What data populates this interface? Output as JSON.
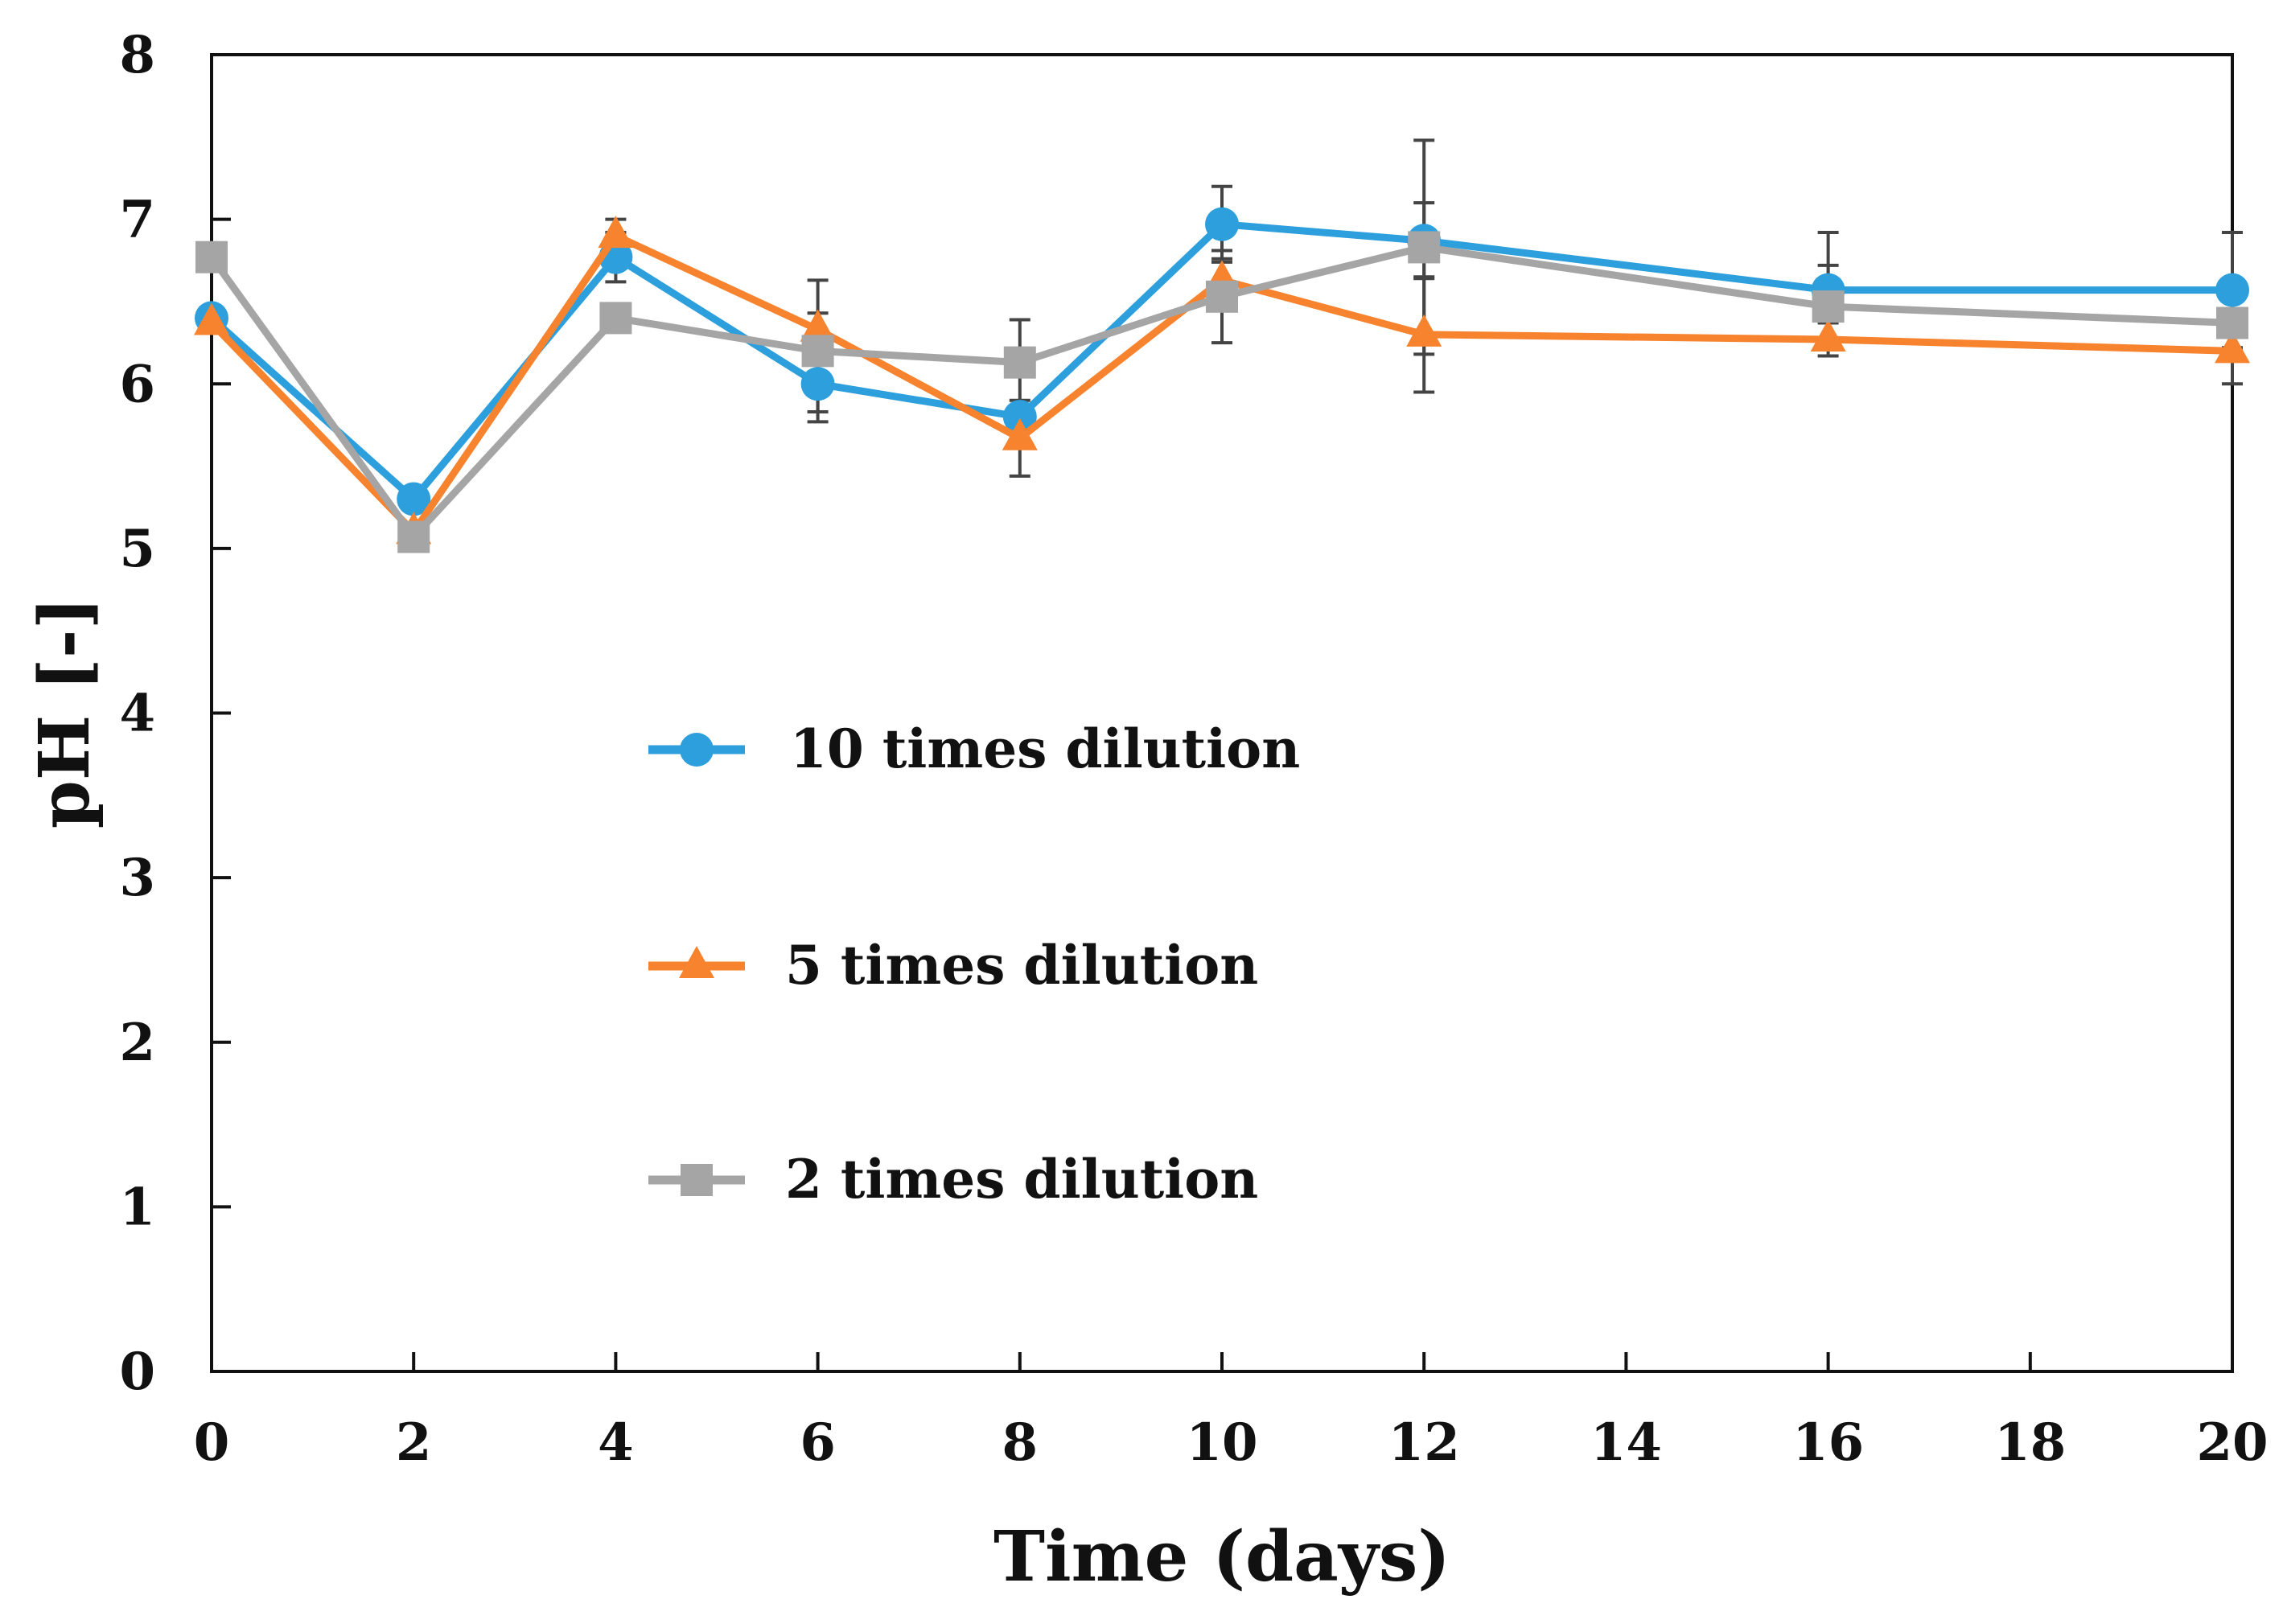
{
  "chart_data": {
    "type": "line",
    "title": "",
    "xlabel": "Time (days)",
    "ylabel": "pH [-]",
    "xlim": [
      0,
      20
    ],
    "ylim": [
      0,
      8
    ],
    "x_ticks": [
      0,
      2,
      4,
      6,
      8,
      10,
      12,
      14,
      16,
      18,
      20
    ],
    "y_ticks": [
      0,
      1,
      2,
      3,
      4,
      5,
      6,
      7,
      8
    ],
    "grid": false,
    "legend_position": "center-left",
    "x": [
      0,
      2,
      4,
      6,
      8,
      10,
      12,
      16,
      20
    ],
    "series": [
      {
        "name": "10 times dilution",
        "color": "#2c9fdc",
        "marker": "circle",
        "values": [
          6.4,
          5.3,
          6.77,
          6.0,
          5.8,
          6.97,
          6.87,
          6.57,
          6.57
        ],
        "errors": [
          0.0,
          0.0,
          0.15,
          0.17,
          0.0,
          0.23,
          0.23,
          0.35,
          0.35
        ]
      },
      {
        "name": "5 times dilution",
        "color": "#f7832e",
        "marker": "triangle",
        "values": [
          6.37,
          5.1,
          6.9,
          6.33,
          5.67,
          6.63,
          6.3,
          6.27,
          6.2
        ],
        "errors": [
          0.0,
          0.0,
          0.1,
          0.1,
          0.23,
          0.13,
          0.35,
          0.1,
          0.2
        ]
      },
      {
        "name": "2 times dilution",
        "color": "#a5a5a5",
        "marker": "square",
        "values": [
          6.77,
          5.07,
          6.4,
          6.2,
          6.13,
          6.53,
          6.83,
          6.47,
          6.37
        ],
        "errors": [
          0.0,
          0.0,
          0.0,
          0.43,
          0.26,
          0.28,
          0.65,
          0.25,
          0.17
        ]
      }
    ]
  }
}
